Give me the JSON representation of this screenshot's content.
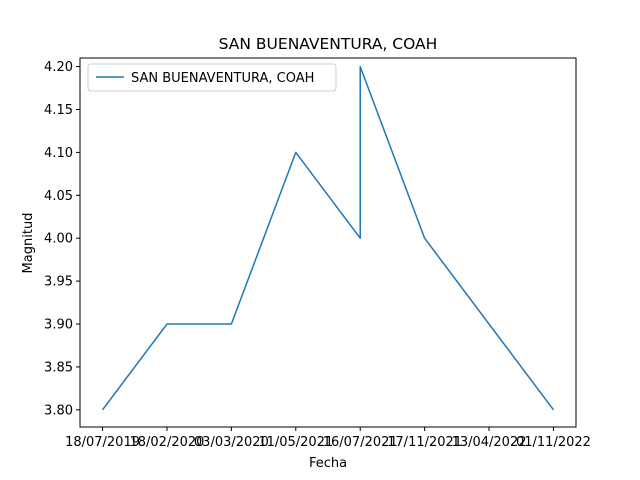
{
  "chart_data": {
    "type": "line",
    "title": "SAN BUENAVENTURA, COAH",
    "xlabel": "Fecha",
    "ylabel": "Magnitud",
    "x_categories": [
      "18/07/2019",
      "18/02/2020",
      "03/03/2020",
      "11/05/2021",
      "16/07/2021",
      "16/07/2021",
      "17/11/2021",
      "13/04/2022",
      "01/11/2022"
    ],
    "x_tick_labels": [
      "18/07/2019",
      "18/02/2020",
      "03/03/2020",
      "11/05/2021",
      "16/07/2021",
      "17/11/2021",
      "13/04/2022",
      "01/11/2022"
    ],
    "x_tick_positions": [
      0,
      1,
      2,
      3,
      4,
      5,
      6,
      7
    ],
    "series": [
      {
        "name": "SAN BUENAVENTURA, COAH",
        "color": "#1f77b4",
        "x": [
          0,
          1,
          2,
          3,
          4,
          4,
          5,
          6,
          7
        ],
        "values": [
          3.8,
          3.9,
          3.9,
          4.1,
          4.0,
          4.2,
          4.0,
          3.9,
          3.8
        ]
      }
    ],
    "ylim": [
      3.78,
      4.21
    ],
    "xlim": [
      -0.35,
      7.35
    ],
    "y_ticks": [
      "3.80",
      "3.85",
      "3.90",
      "3.95",
      "4.00",
      "4.05",
      "4.10",
      "4.15",
      "4.20"
    ],
    "grid": false,
    "legend_position": "top-left"
  }
}
